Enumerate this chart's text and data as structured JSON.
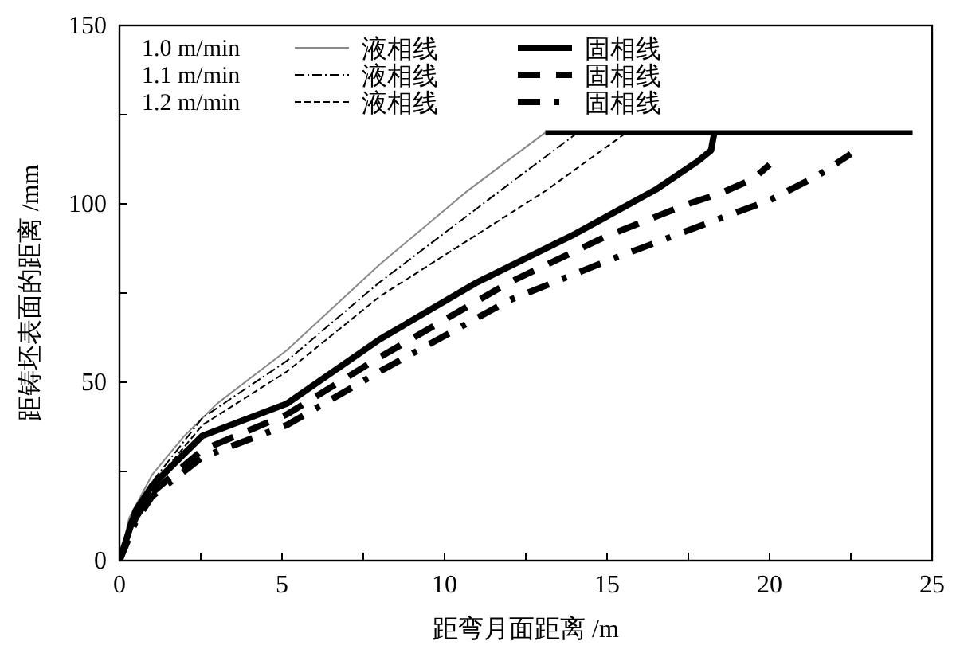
{
  "chart_data": {
    "type": "line",
    "xlabel": "距弯月面距离 /m",
    "ylabel": "距铸坯表面的距离 /mm",
    "xlim": [
      0,
      25
    ],
    "ylim": [
      0,
      150
    ],
    "xticks": [
      0,
      {
        "value": 2.5,
        "label": null
      },
      5,
      {
        "value": 7.5,
        "label": null
      },
      10,
      {
        "value": 12.5,
        "label": null
      },
      15,
      {
        "value": 17.5,
        "label": null
      },
      20,
      {
        "value": 22.5,
        "label": null
      },
      25
    ],
    "yticks": [
      0,
      {
        "value": 25,
        "label": null
      },
      50,
      {
        "value": 75,
        "label": null
      },
      100,
      {
        "value": 125,
        "label": null
      },
      150
    ],
    "grid": false,
    "legend": "top left",
    "annotations": [
      "1.0 m/min",
      "1.1 m/min",
      "1.2 m/min"
    ],
    "series": [
      {
        "name": "液相线",
        "color": "#888888",
        "line_style": "solid",
        "x": [
          0,
          0.3,
          1,
          2,
          3,
          5.15,
          8,
          10.7,
          13.1
        ],
        "values": [
          0,
          12,
          24,
          35,
          44,
          59,
          83,
          103.6,
          120
        ]
      },
      {
        "name": "液相线",
        "color": "#000000",
        "line_style": "dashdot",
        "x": [
          0,
          0.3,
          1,
          2.55,
          5.15,
          8,
          11.7,
          14.1
        ],
        "values": [
          0,
          11,
          22,
          40,
          56,
          78,
          103.6,
          120
        ]
      },
      {
        "name": "液相线",
        "color": "#000000",
        "line_style": "dashed",
        "x": [
          0,
          0.3,
          1,
          2.55,
          5.15,
          8,
          13.1,
          15.6
        ],
        "values": [
          0,
          10,
          21,
          38,
          53,
          74,
          103.6,
          120
        ]
      },
      {
        "name": "固相线",
        "color": "#000000",
        "line_style": "solid",
        "x": [
          0,
          0.5,
          1,
          2.55,
          5.15,
          8,
          11,
          14,
          16.5,
          17.8,
          18.2,
          18.3
        ],
        "values": [
          0,
          14,
          21,
          35,
          44,
          62,
          78,
          91.5,
          104,
          112,
          115,
          120
        ]
      },
      {
        "name": "固相线",
        "color": "#000000",
        "line_style": "dashed",
        "x": [
          0,
          0.5,
          1,
          2.55,
          5.15,
          8,
          12,
          15,
          17.5,
          18.5,
          19.5,
          20
        ],
        "values": [
          0,
          12,
          19,
          31,
          41,
          57,
          78,
          91,
          100,
          103,
          107,
          111
        ]
      },
      {
        "name": "固相线",
        "color": "#000000",
        "line_style": "dashdot",
        "x": [
          0,
          0.5,
          1,
          2.55,
          5.15,
          8,
          12,
          15,
          18.5,
          20,
          21.5,
          22.5
        ],
        "values": [
          0,
          11,
          18,
          29,
          38,
          53,
          73,
          84,
          96,
          101,
          108,
          114
        ]
      },
      {
        "color": "#000000",
        "line_style": "solid",
        "x": [
          13.1,
          24.4
        ],
        "values": [
          120,
          120
        ]
      }
    ]
  }
}
